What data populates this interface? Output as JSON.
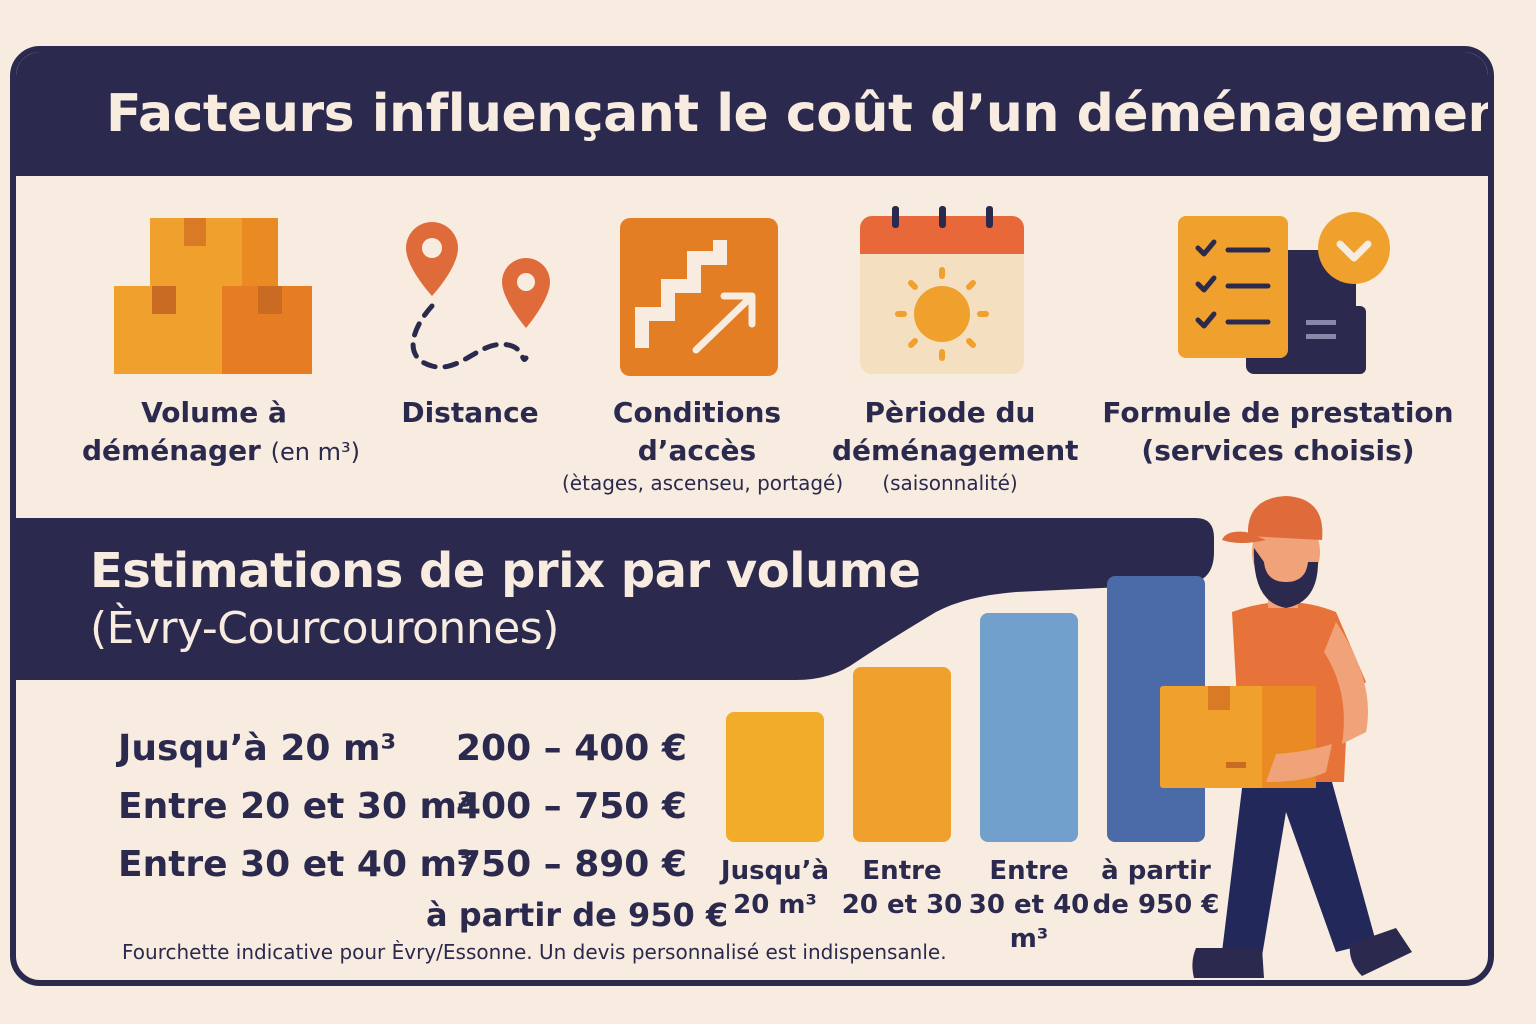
{
  "title": "Facteurs influençant le coût d’un déménagement",
  "factors": [
    {
      "icon": "boxes-icon",
      "line1": "Volume à",
      "line2": "déménager",
      "line2_extra": "(en m³)",
      "detail": ""
    },
    {
      "icon": "map-route-icon",
      "line1": "Distance",
      "line2": "",
      "line2_extra": "",
      "detail": ""
    },
    {
      "icon": "stairs-icon",
      "line1": "Conditions",
      "line2": "d’accès",
      "line2_extra": "",
      "detail": "(ètages, ascenseu, portagé)"
    },
    {
      "icon": "calendar-sun-icon",
      "line1": "Pèriode du",
      "line2": "déménagement",
      "line2_extra": "",
      "detail": "(saisonnalité)"
    },
    {
      "icon": "checklist-icon",
      "line1": "Formule de prestation",
      "line2": "(services choisis)",
      "line2_extra": "",
      "detail": ""
    }
  ],
  "section2": {
    "title": "Estimations de prix par volume",
    "subtitle": "(Èvry-Courcouronnes)"
  },
  "prices": [
    {
      "label": "Jusqu’à 20 m³",
      "range": "200 – 400 €"
    },
    {
      "label": "Entre 20 et 30 m³",
      "range": "400 – 750 €"
    },
    {
      "label": "Entre 30 et 40 m³",
      "range": "750 – 890 €"
    },
    {
      "label": "",
      "range": "à partir de 950 €"
    }
  ],
  "note": "Fourchette indicative pour Èvry/Essonne. Un devis personnalisé est indispensanle.",
  "chart_data": {
    "type": "bar",
    "categories": [
      "Jusqu’à 20 m³",
      "Entre 20 et 30",
      "Entre 30 et 40 m³",
      "à partir de 950 €"
    ],
    "label_lines": [
      [
        "Jusqu’à",
        "20 m³"
      ],
      [
        "Entre",
        "20 et 30"
      ],
      [
        "Entre",
        "30 et 40",
        "m³"
      ],
      [
        "à partir",
        "de 950 €"
      ]
    ],
    "values": [
      1,
      1.35,
      1.76,
      2.05
    ],
    "colors": [
      "#f2ac27",
      "#f0a12d",
      "#72a0cc",
      "#4a6aa8"
    ]
  },
  "colors": {
    "navy": "#2b2a4e",
    "cream": "#f7ecdf",
    "orange": "#e8853a",
    "accent": "#e06b3a"
  }
}
